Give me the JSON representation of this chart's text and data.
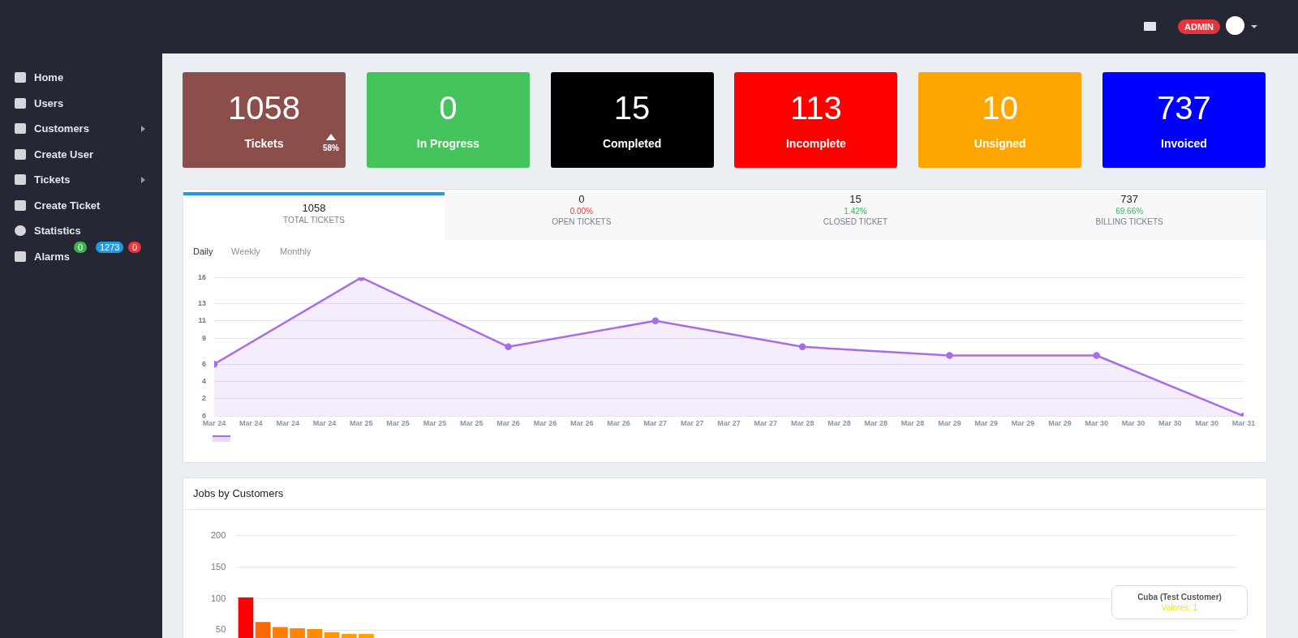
{
  "chart_data": [
    {
      "type": "other",
      "categories": [
        "Home",
        "Users",
        "Customers",
        "Create User",
        "Tickets",
        "Create Ticket",
        "Statistics",
        "Alarms"
      ],
      "annotations": [
        "ADMIN"
      ]
    },
    {
      "type": "other",
      "values": [
        0,
        1273,
        0
      ],
      "colors": [
        "#3cb44b",
        "#1e9be6",
        "#f0323c"
      ],
      "data_labels": true
    },
    {
      "type": "other",
      "categories": [
        "Tickets",
        "In Progress",
        "Completed",
        "Incomplete",
        "Unsigned",
        "Invoiced"
      ],
      "values": [
        1058,
        0,
        15,
        113,
        10,
        737
      ],
      "colors": [
        "#8b4e4b",
        "#45c35c",
        "#000000",
        "#ff0000",
        "#ffa500",
        "#0000ff"
      ],
      "data_labels": true,
      "annotations": [
        "58%"
      ]
    },
    {
      "type": "other",
      "categories": [
        "TOTAL TICKETS",
        "OPEN TICKETS",
        "CLOSED TICKET",
        "BILLING TICKETS"
      ],
      "values": [
        1058,
        0,
        15,
        737
      ],
      "data_labels": true,
      "annotations": [
        "0.00%",
        "1.42%",
        "69.66%"
      ]
    },
    {
      "type": "area",
      "x": [
        "--03-24",
        "--03-25",
        "--03-26",
        "--03-27",
        "--03-28",
        "--03-29",
        "--03-30",
        "--03-31"
      ],
      "series": [
        {
          "color": "#a96de8",
          "values": [
            6,
            16,
            8,
            11,
            8,
            7,
            7,
            0
          ]
        }
      ],
      "xlim": [
        "--03-24",
        "--03-31"
      ],
      "xticks": [
        {
          "value": "--03-24T00:00",
          "label": "Mar 24"
        },
        {
          "value": "--03-24T06:00",
          "label": "Mar 24"
        },
        {
          "value": "--03-24T12:00",
          "label": "Mar 24"
        },
        {
          "value": "--03-24T18:00",
          "label": "Mar 24"
        },
        {
          "value": "--03-25T00:00",
          "label": "Mar 25"
        },
        {
          "value": "--03-25T06:00",
          "label": "Mar 25"
        },
        {
          "value": "--03-25T12:00",
          "label": "Mar 25"
        },
        {
          "value": "--03-25T18:00",
          "label": "Mar 25"
        },
        {
          "value": "--03-26T00:00",
          "label": "Mar 26"
        },
        {
          "value": "--03-26T06:00",
          "label": "Mar 26"
        },
        {
          "value": "--03-26T12:00",
          "label": "Mar 26"
        },
        {
          "value": "--03-26T18:00",
          "label": "Mar 26"
        },
        {
          "value": "--03-27T00:00",
          "label": "Mar 27"
        },
        {
          "value": "--03-27T06:00",
          "label": "Mar 27"
        },
        {
          "value": "--03-27T12:00",
          "label": "Mar 27"
        },
        {
          "value": "--03-27T18:00",
          "label": "Mar 27"
        },
        {
          "value": "--03-28T00:00",
          "label": "Mar 28"
        },
        {
          "value": "--03-28T06:00",
          "label": "Mar 28"
        },
        {
          "value": "--03-28T12:00",
          "label": "Mar 28"
        },
        {
          "value": "--03-28T18:00",
          "label": "Mar 28"
        },
        {
          "value": "--03-29T00:00",
          "label": "Mar 29"
        },
        {
          "value": "--03-29T06:00",
          "label": "Mar 29"
        },
        {
          "value": "--03-29T12:00",
          "label": "Mar 29"
        },
        {
          "value": "--03-29T18:00",
          "label": "Mar 29"
        },
        {
          "value": "--03-30T00:00",
          "label": "Mar 30"
        },
        {
          "value": "--03-30T06:00",
          "label": "Mar 30"
        },
        {
          "value": "--03-30T12:00",
          "label": "Mar 30"
        },
        {
          "value": "--03-30T18:00",
          "label": "Mar 30"
        },
        {
          "value": "--03-31T00:00",
          "label": "Mar 31"
        }
      ],
      "ylim": [
        0,
        16
      ],
      "yticks": [
        0,
        2,
        4,
        6,
        9,
        11,
        13,
        16
      ],
      "grid": "y",
      "marker": "circle",
      "annotations": [
        "Daily",
        "Weekly",
        "Monthly"
      ]
    },
    {
      "type": "bar",
      "title": "Jobs by Customers",
      "categories": [
        null,
        null,
        null,
        null,
        null,
        null,
        null,
        null,
        null,
        null,
        null,
        null,
        null,
        null,
        null,
        null,
        null,
        null,
        null,
        null,
        null,
        null,
        null,
        null,
        null,
        null,
        null,
        null,
        null,
        null,
        null,
        null,
        null,
        null,
        null,
        null,
        null,
        null,
        null,
        null,
        null,
        null,
        null,
        null,
        null,
        null,
        null,
        null,
        null,
        null,
        null,
        null,
        null,
        null,
        null,
        null,
        null,
        null
      ],
      "values": [
        102,
        63,
        55,
        53,
        52,
        47,
        44,
        44,
        null,
        null,
        null,
        null,
        null,
        null,
        null,
        null,
        null,
        null,
        null,
        null,
        null,
        null,
        null,
        null,
        null,
        null,
        null,
        null,
        null,
        null,
        null,
        null,
        null,
        null,
        null,
        null,
        null,
        null,
        null,
        null,
        null,
        null,
        null,
        null,
        null,
        null,
        null,
        null,
        null,
        null,
        null,
        null,
        null,
        null,
        null,
        null,
        null,
        null
      ],
      "colors": [
        "#ff0000",
        "#ff6a00",
        "#ff7d00",
        "#ff8400",
        "#ff8c00",
        "#ff9500",
        "#ff9c00",
        "#ffa200",
        "#ffa500",
        "#ffa500",
        "#ffa500",
        "#ffa500",
        "#ffa500",
        "#ffa500",
        "#ffa500",
        "#ffa500",
        "#ffa500",
        "#ffa500",
        "#ffa500",
        "#ffa500",
        "#ffa500",
        "#ffa500",
        "#ffa500",
        "#ffa500",
        "#ffa500",
        "#ffa500",
        "#ffa500",
        "#ffa500",
        "#ffa500",
        "#ffa500",
        "#ffa500",
        "#ffa500",
        "#ffa500",
        "#ffa500",
        "#ffa500",
        "#ffa500",
        "#ffa500",
        "#ffa500",
        "#ffa500",
        "#ffa500",
        "#ffa500",
        "#ffa500",
        "#ffa500",
        "#ffa500",
        "#ffa500",
        "#ffa500",
        "#ffa500",
        "#ffa500",
        "#ffa500",
        "#ffa500",
        "#ffa500",
        "#ffa500",
        "#ffa500",
        "#ffa500",
        "#ffa500",
        "#ffa500",
        "#ffa500",
        "#ffa500"
      ],
      "ylim": [
        0,
        200
      ],
      "yticks": [
        50,
        100,
        150,
        200
      ],
      "grid": "y",
      "tick_labels": "y",
      "annotations": [
        "Cuba (Test Customer)",
        "Valores: 1"
      ]
    }
  ]
}
